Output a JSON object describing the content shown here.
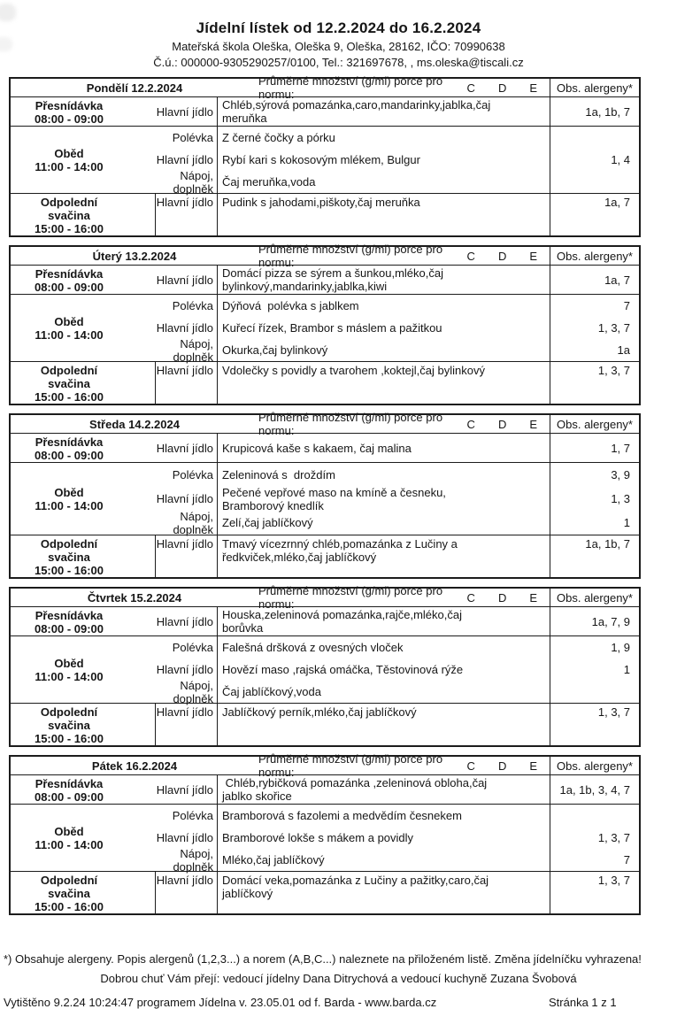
{
  "header": {
    "title": "Jídelní lístek od 12.2.2024 do 16.2.2024",
    "school_line": "Mateřská škola Oleška, Oleška 9, Oleška, 28162, IČO: 70990638",
    "contact_line": "Č.ú.: 000000-9305290257/0100, Tel.: 321697678, , ms.oleska@tiscali.cz"
  },
  "table_header": {
    "avg_label": "Průměrné množství (g/ml) porce pro normu:",
    "norm_letters": [
      "C",
      "D",
      "E"
    ],
    "allergens_label": "Obs. alergeny*"
  },
  "row_labels": {
    "presnidavka": "Přesnídávka",
    "presnidavka_time": "08:00 - 09:00",
    "obed": "Oběd",
    "obed_time": "11:00 - 14:00",
    "svacina_line1": "Odpolední",
    "svacina_line2": "svačina",
    "svacina_time": "15:00 - 16:00",
    "hlavni_jidlo": "Hlavní jídlo",
    "polevka": "Polévka",
    "napoj_doplnek": "Nápoj, doplněk"
  },
  "days": [
    {
      "name": "Pondělí 12.2.2024",
      "presnidavka": {
        "food": "Chléb,sýrová pomazánka,caro,mandarinky,jablka,čaj\nmeruňka",
        "allergens": "1a, 1b, 7"
      },
      "obed": {
        "polevka": {
          "food": "Z černé čočky a pórku",
          "allergens": ""
        },
        "hlavni": {
          "food": "Rybí kari s kokosovým mlékem, Bulgur",
          "allergens": "1, 4"
        },
        "napoj": {
          "food": "Čaj meruňka,voda",
          "allergens": ""
        }
      },
      "svacina": {
        "food": "Pudink s jahodami,piškoty,čaj meruňka",
        "allergens": "1a, 7"
      }
    },
    {
      "name": "Úterý 13.2.2024",
      "presnidavka": {
        "food": "Domácí pizza se sýrem a šunkou,mléko,čaj\nbylinkový,mandarinky,jablka,kiwi",
        "allergens": "1a, 7"
      },
      "obed": {
        "polevka": {
          "food": "Dýňová  polévka s jablkem",
          "allergens": "7"
        },
        "hlavni": {
          "food": "Kuřecí řízek, Brambor s máslem a pažitkou",
          "allergens": "1, 3, 7"
        },
        "napoj": {
          "food": "Okurka,čaj bylinkový",
          "allergens": "1a"
        }
      },
      "svacina": {
        "food": "Vdolečky s povidly a tvarohem ,koktejl,čaj bylinkový",
        "allergens": "1, 3, 7"
      }
    },
    {
      "name": "Středa 14.2.2024",
      "presnidavka": {
        "food": "Krupicová kaše s kakaem, čaj malina",
        "allergens": "1, 7"
      },
      "obed": {
        "polevka": {
          "food": "Zeleninová s  droždím",
          "allergens": "3, 9"
        },
        "hlavni": {
          "food": "Pečené vepřové maso na kmíně a česneku,\nBramborový knedlík",
          "allergens": "1, 3"
        },
        "napoj": {
          "food": "Zelí,čaj jablíčkový",
          "allergens": "1"
        }
      },
      "svacina": {
        "food": "Tmavý vícezrnný chléb,pomazánka z Lučiny a\nředkviček,mléko,čaj jablíčkový",
        "allergens": "1a, 1b, 7"
      }
    },
    {
      "name": "Čtvrtek 15.2.2024",
      "presnidavka": {
        "food": "Houska,zeleninová pomazánka,rajče,mléko,čaj\nborůvka",
        "allergens": "1a, 7, 9"
      },
      "obed": {
        "polevka": {
          "food": "Falešná dršková z ovesných vloček",
          "allergens": "1, 9"
        },
        "hlavni": {
          "food": "Hovězí maso ,rajská omáčka, Těstovinová rýže",
          "allergens": "1"
        },
        "napoj": {
          "food": "Čaj jablíčkový,voda",
          "allergens": ""
        }
      },
      "svacina": {
        "food": "Jablíčkový perník,mléko,čaj jablíčkový",
        "allergens": "1, 3, 7"
      }
    },
    {
      "name": "Pátek 16.2.2024",
      "presnidavka": {
        "food": " Chléb,rybičková pomazánka ,zeleninová obloha,čaj\njablko skořice",
        "allergens": "1a, 1b, 3, 4, 7"
      },
      "obed": {
        "polevka": {
          "food": "Bramborová s fazolemi a medvědím česnekem",
          "allergens": ""
        },
        "hlavni": {
          "food": "Bramborové lokše s mákem a povidly",
          "allergens": "1, 3, 7"
        },
        "napoj": {
          "food": "Mléko,čaj jablíčkový",
          "allergens": "7"
        }
      },
      "svacina": {
        "food": "Domácí veka,pomazánka z Lučiny a pažitky,caro,čaj\njablíčkový",
        "allergens": "1, 3, 7"
      }
    }
  ],
  "footer": {
    "allergen_note": "*) Obsahuje alergeny. Popis alergenů (1,2,3...) a norem (A,B,C...) naleznete na přiloženém listě. Změna jídelníčku vyhrazena!",
    "wish_line": "Dobrou chuť Vám přejí: vedoucí jídelny Dana Ditrychová a vedoucí kuchyně Zuzana Švobová",
    "printed_line": "Vytištěno 9.2.24 10:24:47 programem Jídelna v. 23.05.01 od f. Barda - www.barda.cz",
    "page_number": "Stránka 1 z 1"
  }
}
